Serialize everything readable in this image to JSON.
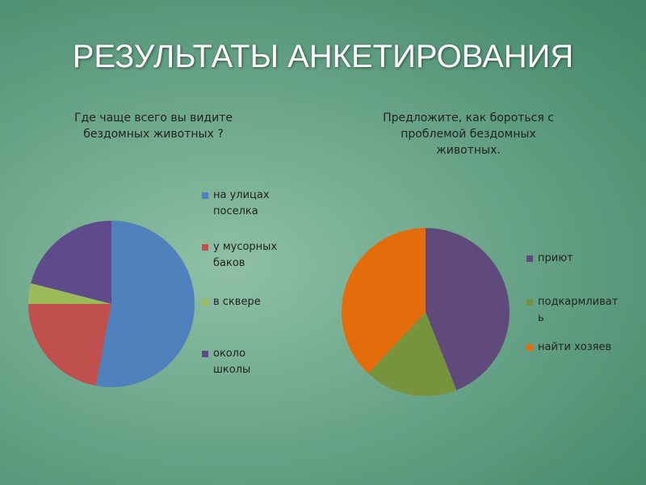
{
  "title": "РЕЗУЛЬТАТЫ АНКЕТИРОВАНИЯ",
  "chart_data": [
    {
      "type": "pie",
      "title": "Где чаще всего вы видите бездомных животных ?",
      "series": [
        {
          "name": "на улицах поселка",
          "color": "#4f81bd",
          "values": [
            53
          ]
        },
        {
          "name": "у мусорных баков",
          "color": "#c0504d",
          "values": [
            22
          ]
        },
        {
          "name": "в сквере",
          "color": "#9bbb59",
          "values": [
            4
          ]
        },
        {
          "name": "около школы",
          "color": "#5f4b8b",
          "values": [
            21
          ]
        }
      ]
    },
    {
      "type": "pie",
      "title": "Предложите, как бороться с проблемой бездомных животных.",
      "series": [
        {
          "name": "приют",
          "color": "#604a7b",
          "values": [
            44
          ]
        },
        {
          "name": "подкармливать",
          "color": "#77933c",
          "values": [
            18
          ]
        },
        {
          "name": "найти хозяев",
          "color": "#e46c0a",
          "values": [
            38
          ]
        }
      ]
    }
  ]
}
